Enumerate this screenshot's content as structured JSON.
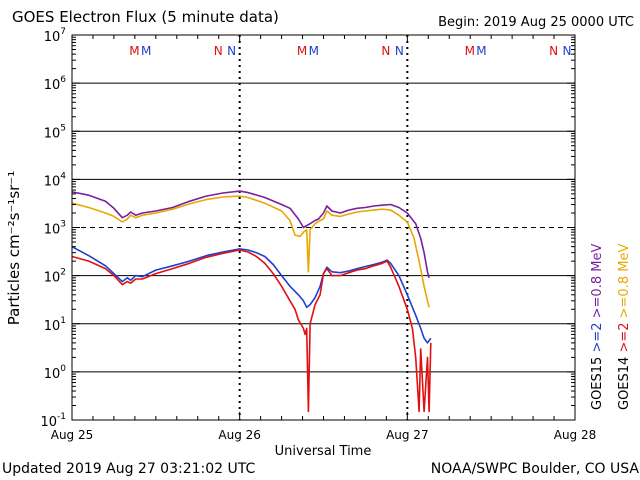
{
  "chart_data": {
    "type": "line",
    "title": "GOES Electron Flux (5 minute data)",
    "begin_label": "Begin: 2019 Aug 25 0000 UTC",
    "xlabel": "Universal Time",
    "ylabel": "Particles cm⁻²s⁻¹sr⁻¹",
    "x_unit": "days since 2019-08-25 00:00 UTC",
    "xlim": [
      0,
      3
    ],
    "ylim": [
      0.1,
      10000000
    ],
    "y_scale": "log",
    "x_ticks": [
      {
        "x": 0,
        "label": "Aug 25"
      },
      {
        "x": 1,
        "label": "Aug 26"
      },
      {
        "x": 2,
        "label": "Aug 27"
      },
      {
        "x": 3,
        "label": "Aug 28"
      }
    ],
    "y_ticks": [
      {
        "value": 0.1,
        "base": "10",
        "exp": "-1"
      },
      {
        "value": 1,
        "base": "10",
        "exp": "0"
      },
      {
        "value": 10,
        "base": "10",
        "exp": "1"
      },
      {
        "value": 100,
        "base": "10",
        "exp": "2"
      },
      {
        "value": 1000,
        "base": "10",
        "exp": "3"
      },
      {
        "value": 10000,
        "base": "10",
        "exp": "4"
      },
      {
        "value": 100000,
        "base": "10",
        "exp": "5"
      },
      {
        "value": 1000000,
        "base": "10",
        "exp": "6"
      },
      {
        "value": 10000000,
        "base": "10",
        "exp": "7"
      }
    ],
    "threshold_line": 1000,
    "markers": [
      {
        "x": 0.42,
        "label": "M",
        "color": "#e01010"
      },
      {
        "x": 0.49,
        "label": "M",
        "color": "#1f3fd0"
      },
      {
        "x": 0.92,
        "label": "N",
        "color": "#e01010"
      },
      {
        "x": 1.0,
        "label": "N",
        "color": "#1f3fd0"
      },
      {
        "x": 1.42,
        "label": "M",
        "color": "#e01010"
      },
      {
        "x": 1.49,
        "label": "M",
        "color": "#1f3fd0"
      },
      {
        "x": 1.92,
        "label": "N",
        "color": "#e01010"
      },
      {
        "x": 2.0,
        "label": "N",
        "color": "#1f3fd0"
      },
      {
        "x": 2.42,
        "label": "M",
        "color": "#e01010"
      },
      {
        "x": 2.49,
        "label": "M",
        "color": "#1f3fd0"
      },
      {
        "x": 2.92,
        "label": "N",
        "color": "#e01010"
      },
      {
        "x": 3.0,
        "label": "N",
        "color": "#1f3fd0"
      }
    ],
    "legend": [
      {
        "label": "GOES15",
        "color": "#000000",
        "parts": [
          {
            "text": ">=2",
            "color": "#1f3fd0"
          },
          {
            "text": ">=0.8 MeV",
            "color": "#7a1f9f"
          }
        ]
      },
      {
        "label": "GOES14",
        "color": "#000000",
        "parts": [
          {
            "text": ">=2",
            "color": "#e01010"
          },
          {
            "text": ">=0.8 MeV",
            "color": "#e8a800"
          }
        ]
      }
    ],
    "series": [
      {
        "name": "GOES15 >=0.8 MeV",
        "color": "#7a1f9f",
        "points": [
          [
            0,
            5500
          ],
          [
            0.1,
            4700
          ],
          [
            0.2,
            3500
          ],
          [
            0.25,
            2500
          ],
          [
            0.3,
            1600
          ],
          [
            0.33,
            1800
          ],
          [
            0.35,
            2100
          ],
          [
            0.38,
            1800
          ],
          [
            0.42,
            2000
          ],
          [
            0.5,
            2200
          ],
          [
            0.6,
            2600
          ],
          [
            0.7,
            3500
          ],
          [
            0.8,
            4500
          ],
          [
            0.9,
            5200
          ],
          [
            1.0,
            5700
          ],
          [
            1.05,
            5300
          ],
          [
            1.15,
            4200
          ],
          [
            1.25,
            3000
          ],
          [
            1.3,
            2500
          ],
          [
            1.35,
            1500
          ],
          [
            1.38,
            1000
          ],
          [
            1.42,
            1200
          ],
          [
            1.45,
            1400
          ],
          [
            1.47,
            1500
          ],
          [
            1.5,
            2000
          ],
          [
            1.52,
            2800
          ],
          [
            1.55,
            2200
          ],
          [
            1.6,
            2000
          ],
          [
            1.65,
            2300
          ],
          [
            1.7,
            2500
          ],
          [
            1.75,
            2600
          ],
          [
            1.8,
            2800
          ],
          [
            1.85,
            2900
          ],
          [
            1.9,
            3000
          ],
          [
            1.95,
            2600
          ],
          [
            2.0,
            2000
          ],
          [
            2.05,
            1200
          ],
          [
            2.08,
            600
          ],
          [
            2.1,
            300
          ],
          [
            2.12,
            120
          ],
          [
            2.13,
            90
          ]
        ]
      },
      {
        "name": "GOES14 >=0.8 MeV",
        "color": "#e8a800",
        "points": [
          [
            0,
            3200
          ],
          [
            0.1,
            2600
          ],
          [
            0.2,
            2000
          ],
          [
            0.25,
            1700
          ],
          [
            0.3,
            1300
          ],
          [
            0.33,
            1500
          ],
          [
            0.35,
            1800
          ],
          [
            0.38,
            1600
          ],
          [
            0.42,
            1800
          ],
          [
            0.5,
            2000
          ],
          [
            0.6,
            2400
          ],
          [
            0.7,
            3100
          ],
          [
            0.8,
            3800
          ],
          [
            0.9,
            4300
          ],
          [
            1.0,
            4500
          ],
          [
            1.05,
            4200
          ],
          [
            1.15,
            3200
          ],
          [
            1.25,
            2200
          ],
          [
            1.3,
            1400
          ],
          [
            1.33,
            700
          ],
          [
            1.36,
            650
          ],
          [
            1.38,
            800
          ],
          [
            1.4,
            900
          ],
          [
            1.41,
            120
          ],
          [
            1.42,
            900
          ],
          [
            1.45,
            1200
          ],
          [
            1.48,
            1400
          ],
          [
            1.5,
            1500
          ],
          [
            1.52,
            2200
          ],
          [
            1.55,
            1800
          ],
          [
            1.6,
            1700
          ],
          [
            1.65,
            1900
          ],
          [
            1.7,
            2100
          ],
          [
            1.75,
            2200
          ],
          [
            1.8,
            2300
          ],
          [
            1.85,
            2400
          ],
          [
            1.9,
            2300
          ],
          [
            1.95,
            1800
          ],
          [
            2.0,
            1300
          ],
          [
            2.04,
            600
          ],
          [
            2.07,
            200
          ],
          [
            2.1,
            60
          ],
          [
            2.12,
            30
          ],
          [
            2.13,
            22
          ]
        ]
      },
      {
        "name": "GOES15 >=2 MeV",
        "color": "#1f3fd0",
        "points": [
          [
            0,
            400
          ],
          [
            0.1,
            260
          ],
          [
            0.2,
            160
          ],
          [
            0.25,
            110
          ],
          [
            0.3,
            75
          ],
          [
            0.33,
            90
          ],
          [
            0.35,
            80
          ],
          [
            0.38,
            100
          ],
          [
            0.42,
            95
          ],
          [
            0.5,
            130
          ],
          [
            0.6,
            160
          ],
          [
            0.7,
            200
          ],
          [
            0.8,
            260
          ],
          [
            0.9,
            310
          ],
          [
            1.0,
            360
          ],
          [
            1.05,
            340
          ],
          [
            1.1,
            300
          ],
          [
            1.15,
            250
          ],
          [
            1.2,
            170
          ],
          [
            1.25,
            100
          ],
          [
            1.3,
            60
          ],
          [
            1.35,
            40
          ],
          [
            1.38,
            30
          ],
          [
            1.4,
            22
          ],
          [
            1.42,
            25
          ],
          [
            1.45,
            35
          ],
          [
            1.48,
            60
          ],
          [
            1.5,
            110
          ],
          [
            1.52,
            150
          ],
          [
            1.55,
            120
          ],
          [
            1.6,
            115
          ],
          [
            1.65,
            125
          ],
          [
            1.7,
            140
          ],
          [
            1.75,
            155
          ],
          [
            1.8,
            170
          ],
          [
            1.85,
            190
          ],
          [
            1.88,
            210
          ],
          [
            1.9,
            180
          ],
          [
            1.95,
            100
          ],
          [
            2.0,
            40
          ],
          [
            2.05,
            15
          ],
          [
            2.08,
            8
          ],
          [
            2.1,
            5
          ],
          [
            2.12,
            4
          ],
          [
            2.14,
            5
          ]
        ]
      },
      {
        "name": "GOES14 >=2 MeV",
        "color": "#e01010",
        "points": [
          [
            0,
            250
          ],
          [
            0.1,
            200
          ],
          [
            0.2,
            140
          ],
          [
            0.25,
            100
          ],
          [
            0.3,
            65
          ],
          [
            0.33,
            75
          ],
          [
            0.35,
            70
          ],
          [
            0.38,
            85
          ],
          [
            0.42,
            85
          ],
          [
            0.5,
            110
          ],
          [
            0.6,
            140
          ],
          [
            0.7,
            180
          ],
          [
            0.8,
            240
          ],
          [
            0.9,
            290
          ],
          [
            1.0,
            340
          ],
          [
            1.05,
            310
          ],
          [
            1.1,
            250
          ],
          [
            1.15,
            180
          ],
          [
            1.2,
            110
          ],
          [
            1.25,
            60
          ],
          [
            1.3,
            30
          ],
          [
            1.33,
            20
          ],
          [
            1.35,
            12
          ],
          [
            1.38,
            8
          ],
          [
            1.39,
            6
          ],
          [
            1.4,
            8
          ],
          [
            1.41,
            0.15
          ],
          [
            1.42,
            10
          ],
          [
            1.45,
            25
          ],
          [
            1.48,
            40
          ],
          [
            1.5,
            110
          ],
          [
            1.52,
            140
          ],
          [
            1.55,
            100
          ],
          [
            1.6,
            100
          ],
          [
            1.65,
            115
          ],
          [
            1.7,
            130
          ],
          [
            1.75,
            140
          ],
          [
            1.8,
            160
          ],
          [
            1.85,
            180
          ],
          [
            1.88,
            200
          ],
          [
            1.9,
            150
          ],
          [
            1.95,
            60
          ],
          [
            2.0,
            20
          ],
          [
            2.03,
            8
          ],
          [
            2.05,
            2
          ],
          [
            2.07,
            0.15
          ],
          [
            2.08,
            3
          ],
          [
            2.1,
            0.15
          ],
          [
            2.12,
            2
          ],
          [
            2.13,
            0.15
          ],
          [
            2.14,
            4
          ]
        ]
      }
    ]
  },
  "footer": {
    "updated": "Updated 2019 Aug 27 03:21:02 UTC",
    "source": "NOAA/SWPC Boulder, CO USA"
  }
}
